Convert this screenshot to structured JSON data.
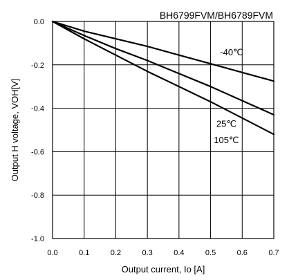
{
  "chart_data": {
    "type": "line",
    "title": "BH6799FVM/BH6789FVM",
    "xlabel": "Output current, Io [A]",
    "ylabel": "Output H voltage, VOH[V]",
    "xlim": [
      0.0,
      0.7
    ],
    "ylim": [
      -1.0,
      0.0
    ],
    "grid": true,
    "x_ticks": [
      "0.0",
      "0.1",
      "0.2",
      "0.3",
      "0.4",
      "0.5",
      "0.6",
      "0.7"
    ],
    "y_ticks": [
      "0.0",
      "-0.2",
      "-0.4",
      "-0.6",
      "-0.8",
      "-1.0"
    ],
    "series": [
      {
        "name": "-40℃",
        "x": [
          0.0,
          0.1,
          0.2,
          0.3,
          0.4,
          0.5,
          0.6,
          0.7
        ],
        "y": [
          0.0,
          -0.045,
          -0.08,
          -0.115,
          -0.155,
          -0.195,
          -0.235,
          -0.275
        ]
      },
      {
        "name": "25℃",
        "x": [
          0.0,
          0.1,
          0.2,
          0.3,
          0.4,
          0.5,
          0.6,
          0.7
        ],
        "y": [
          0.0,
          -0.065,
          -0.125,
          -0.18,
          -0.24,
          -0.3,
          -0.365,
          -0.43
        ]
      },
      {
        "name": "105℃",
        "x": [
          0.0,
          0.1,
          0.2,
          0.3,
          0.4,
          0.5,
          0.6,
          0.7
        ],
        "y": [
          0.0,
          -0.08,
          -0.155,
          -0.23,
          -0.3,
          -0.37,
          -0.445,
          -0.52
        ]
      }
    ]
  }
}
